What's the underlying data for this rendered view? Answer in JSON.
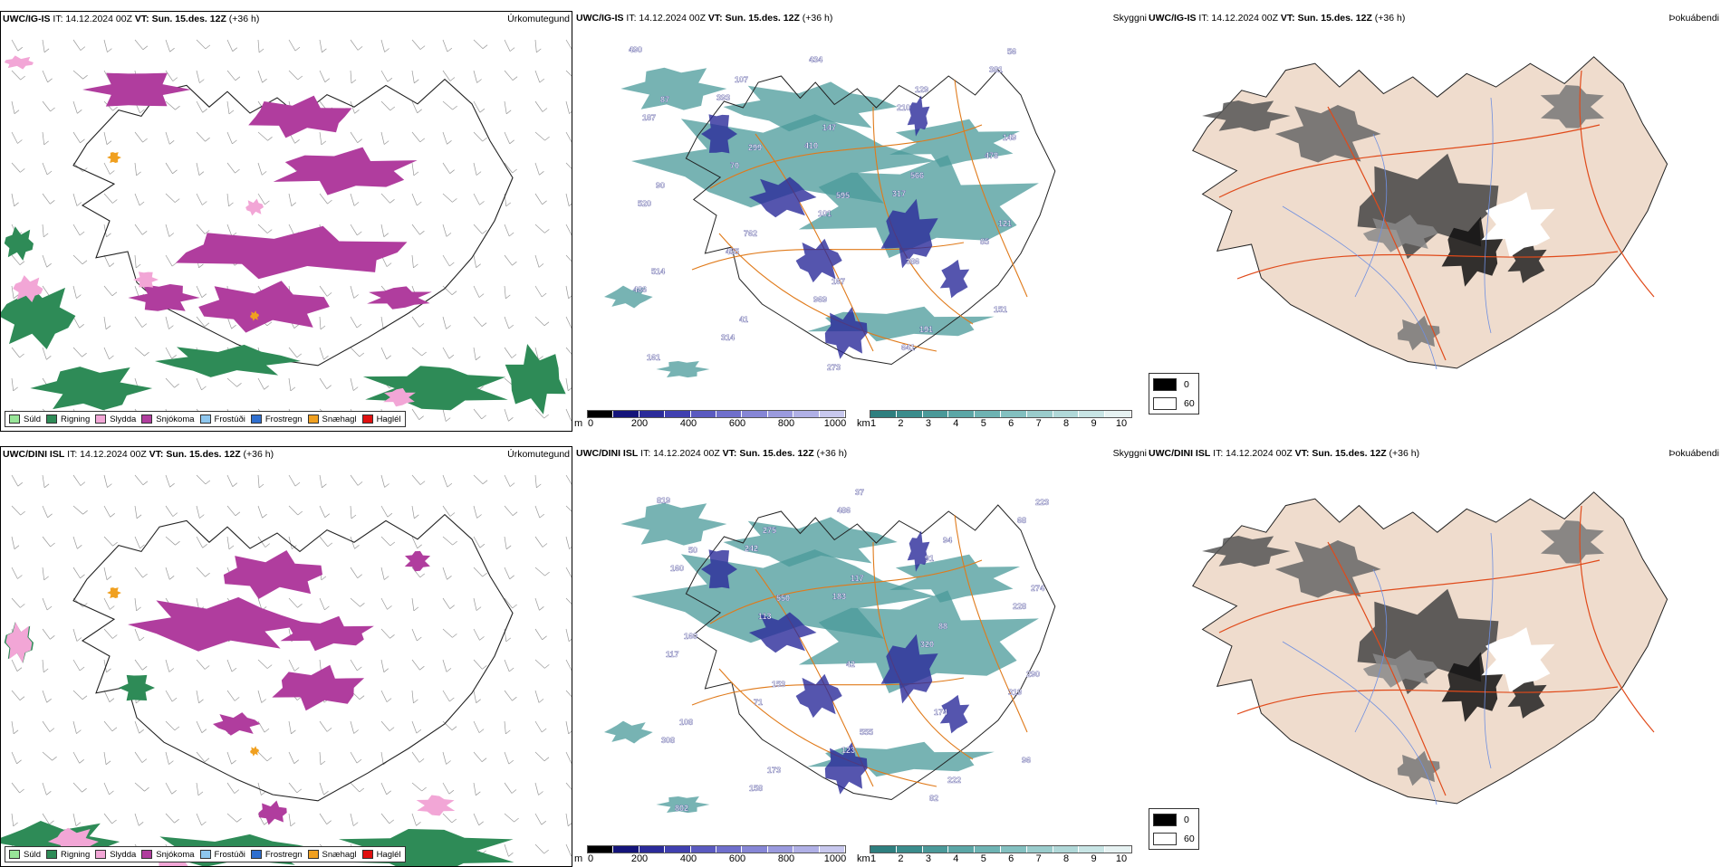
{
  "rows": [
    {
      "model": "UWC/IG-IS",
      "it_label": "IT:",
      "it_value": "14.12.2024 00Z",
      "vt_label": "VT:",
      "vt_value": "Sun. 15.des. 12Z",
      "lead": "(+36 h)",
      "precip_title": "Úrkomutegund",
      "cloud_title": "Skyggni",
      "fog_title": "Þokuábendi",
      "cloud_labels": [
        "490",
        "393",
        "410",
        "317",
        "85",
        "486",
        "314",
        "434",
        "210",
        "478",
        "520",
        "455",
        "969",
        "641",
        "381",
        "187",
        "70",
        "101",
        "386",
        "151",
        "161",
        "107",
        "147",
        "566",
        "121",
        "514",
        "41",
        "273",
        "129",
        "149",
        "90",
        "762",
        "167",
        "191",
        "56",
        "87",
        "299",
        "595"
      ]
    },
    {
      "model": "UWC/DINI ISL",
      "it_label": "IT:",
      "it_value": "14.12.2024 00Z",
      "vt_label": "VT:",
      "vt_value": "Sun. 15.des. 12Z",
      "lead": "(+36 h)",
      "precip_title": "Úrkomutegund",
      "cloud_title": "Skyggni",
      "fog_title": "Þokuábendi",
      "cloud_labels": [
        "819",
        "242",
        "183",
        "320",
        "319",
        "308",
        "158",
        "486",
        "91",
        "228",
        "117",
        "71",
        "123",
        "82",
        "68",
        "160",
        "113",
        "42",
        "174",
        "96",
        "802",
        "275",
        "117",
        "88",
        "290",
        "108",
        "173",
        "37",
        "94",
        "274",
        "160",
        "153",
        "555",
        "222",
        "223",
        "50",
        "550"
      ]
    }
  ],
  "precip_legend": [
    {
      "label": "Súld",
      "color": "#98e598"
    },
    {
      "label": "Rigning",
      "color": "#2e8b57"
    },
    {
      "label": "Slydda",
      "color": "#f2a6d6"
    },
    {
      "label": "Snjókoma",
      "color": "#b03d9e"
    },
    {
      "label": "Frostúði",
      "color": "#8ec7ef"
    },
    {
      "label": "Frostregn",
      "color": "#2f6fcf"
    },
    {
      "label": "Snæhagl",
      "color": "#f0a020"
    },
    {
      "label": "Haglél",
      "color": "#e01010"
    }
  ],
  "cloud_base_scale": {
    "unit": "m",
    "ticks": [
      "0",
      "200",
      "400",
      "600",
      "800",
      "1000"
    ],
    "colors": [
      "#000000",
      "#14147a",
      "#2b2b9a",
      "#4040b0",
      "#5a5ac0",
      "#6f6fcc",
      "#8686d6",
      "#9a9ade",
      "#b0b0e6",
      "#c8c8ee"
    ]
  },
  "visibility_scale": {
    "unit": "km",
    "ticks": [
      "1",
      "2",
      "3",
      "4",
      "5",
      "6",
      "7",
      "8",
      "9",
      "10"
    ],
    "colors": [
      "#2e7f7f",
      "#3a8c8c",
      "#4a9999",
      "#5ba6a6",
      "#6eb3b3",
      "#83c0c0",
      "#9acccc",
      "#b0d8d8",
      "#c8e5e5",
      "#e6f2f2"
    ]
  },
  "fog_key": [
    {
      "label": "0",
      "color": "#000000"
    },
    {
      "label": "60",
      "color": "#ffffff"
    }
  ]
}
